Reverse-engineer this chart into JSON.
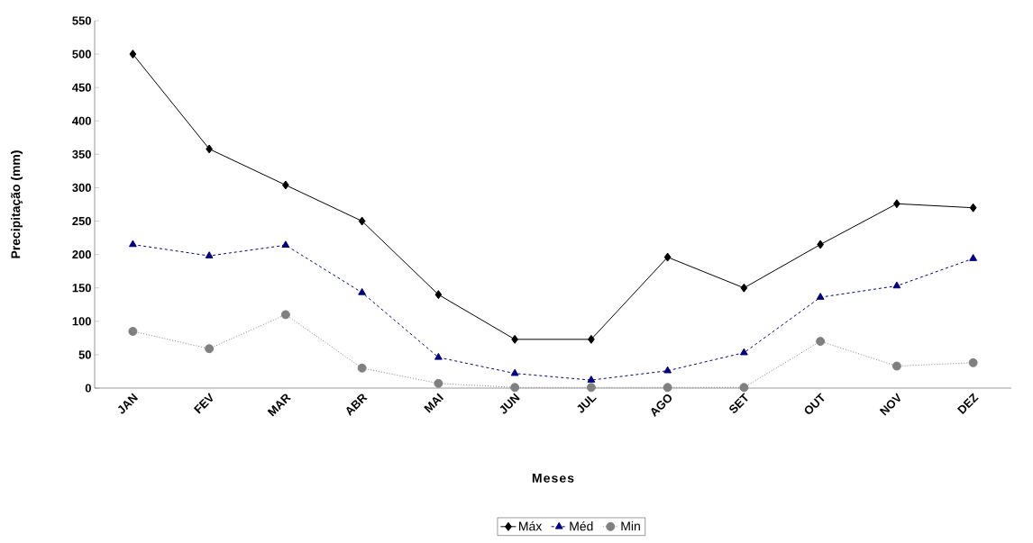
{
  "chart_data": {
    "type": "line",
    "xlabel": "Meses",
    "ylabel": "Precipitação (mm)",
    "categories": [
      "JAN",
      "FEV",
      "MAR",
      "ABR",
      "MAI",
      "JUN",
      "JUL",
      "AGO",
      "SET",
      "OUT",
      "NOV",
      "DEZ"
    ],
    "series": [
      {
        "name": "Máx",
        "color": "#000000",
        "marker": "diamond",
        "line_style": "solid",
        "values": [
          500,
          358,
          304,
          250,
          140,
          73,
          73,
          196,
          150,
          215,
          276,
          270
        ]
      },
      {
        "name": "Méd",
        "color": "#000080",
        "marker": "triangle",
        "line_style": "dashed",
        "values": [
          215,
          198,
          214,
          143,
          46,
          22,
          12,
          26,
          53,
          136,
          153,
          194
        ]
      },
      {
        "name": "Min",
        "color": "#808080",
        "marker": "circle",
        "line_style": "dotted",
        "values": [
          85,
          59,
          110,
          30,
          7,
          1,
          1,
          1,
          1,
          70,
          33,
          38
        ]
      }
    ],
    "ylim": [
      0,
      550
    ],
    "yticks": [
      0,
      50,
      100,
      150,
      200,
      250,
      300,
      350,
      400,
      450,
      500,
      550
    ],
    "grid": false,
    "legend": "bottom"
  }
}
